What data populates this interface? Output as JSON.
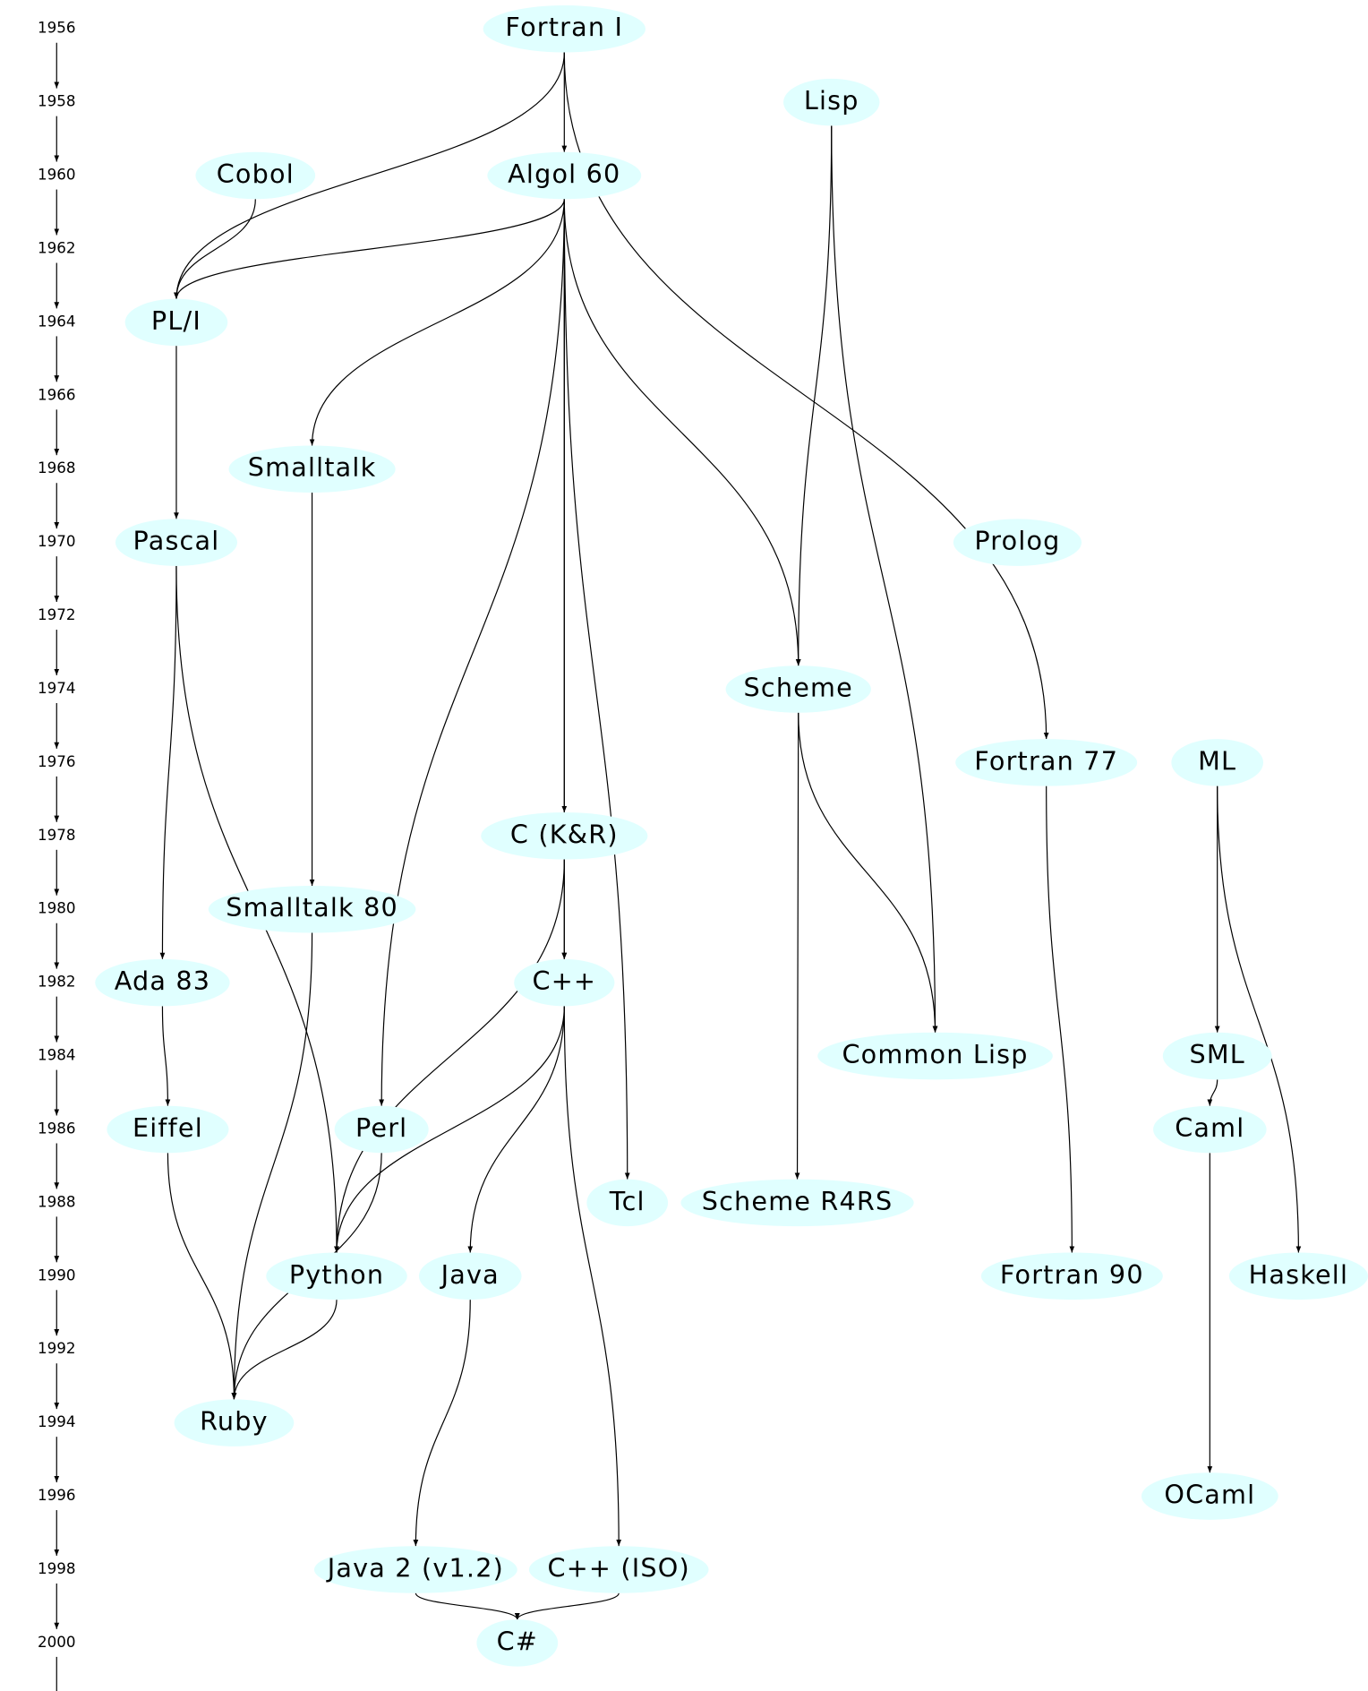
{
  "timeline": {
    "years": [
      "1956",
      "1958",
      "1960",
      "1962",
      "1964",
      "1966",
      "1968",
      "1970",
      "1972",
      "1974",
      "1976",
      "1978",
      "1980",
      "1982",
      "1984",
      "1986",
      "1988",
      "1990",
      "1992",
      "1994",
      "1996",
      "1998",
      "2000"
    ]
  },
  "nodes": [
    {
      "label": "Fortran I"
    },
    {
      "label": "Lisp"
    },
    {
      "label": "Cobol"
    },
    {
      "label": "Algol 60"
    },
    {
      "label": "PL/I"
    },
    {
      "label": "Smalltalk"
    },
    {
      "label": "Pascal"
    },
    {
      "label": "Prolog"
    },
    {
      "label": "Scheme"
    },
    {
      "label": "Fortran 77"
    },
    {
      "label": "ML"
    },
    {
      "label": "C (K&R)"
    },
    {
      "label": "Smalltalk 80"
    },
    {
      "label": "Ada 83"
    },
    {
      "label": "C++"
    },
    {
      "label": "Common Lisp"
    },
    {
      "label": "SML"
    },
    {
      "label": "Eiffel"
    },
    {
      "label": "Perl"
    },
    {
      "label": "Caml"
    },
    {
      "label": "Tcl"
    },
    {
      "label": "Scheme R4RS"
    },
    {
      "label": "Python"
    },
    {
      "label": "Java"
    },
    {
      "label": "Fortran 90"
    },
    {
      "label": "Haskell"
    },
    {
      "label": "Ruby"
    },
    {
      "label": "OCaml"
    },
    {
      "label": "Java 2 (v1.2)"
    },
    {
      "label": "C++ (ISO)"
    },
    {
      "label": "C#"
    }
  ]
}
